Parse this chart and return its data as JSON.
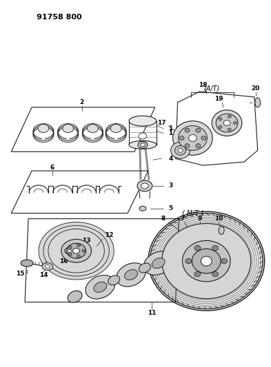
{
  "title": "91758 800",
  "background_color": "#ffffff",
  "line_color": "#000000",
  "fig_width": 3.93,
  "fig_height": 5.33,
  "dpi": 100
}
